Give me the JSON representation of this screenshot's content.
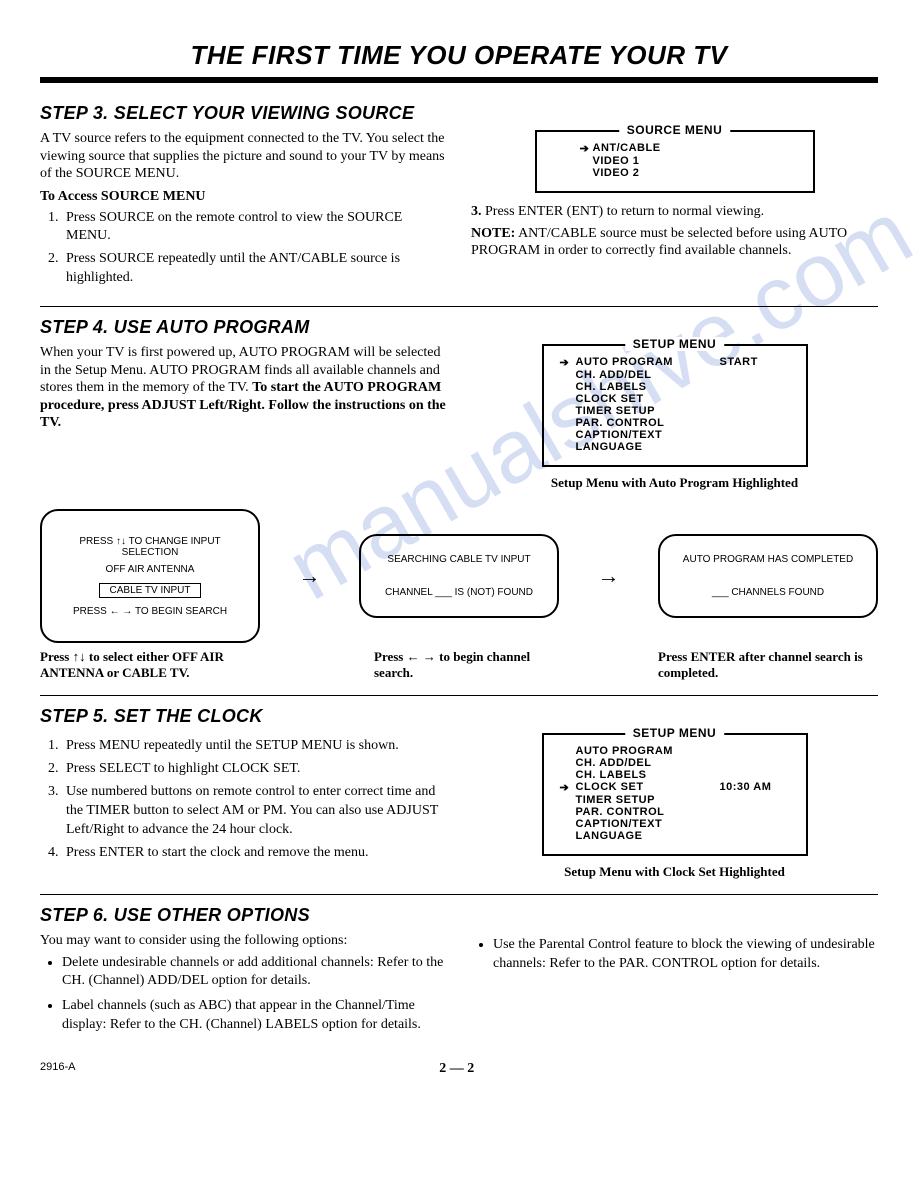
{
  "watermark": "manualshive.com",
  "page_title": "THE FIRST TIME YOU OPERATE YOUR TV",
  "step3": {
    "heading": "STEP 3. SELECT YOUR VIEWING SOURCE",
    "para1": "A TV source refers to the equipment connected to the TV. You select the viewing source that supplies the picture and sound to your TV by means of the SOURCE MENU.",
    "subhead": "To Access SOURCE MENU",
    "items": [
      "Press SOURCE on the remote control to view the SOURCE MENU.",
      "Press SOURCE repeatedly until the ANT/CABLE source is highlighted."
    ],
    "source_menu": {
      "title": "SOURCE MENU",
      "rows": [
        {
          "arrow": "➔",
          "label": "ANT/CABLE"
        },
        {
          "arrow": "",
          "label": "VIDEO 1"
        },
        {
          "arrow": "",
          "label": "VIDEO 2"
        }
      ]
    },
    "item3_lead": "3.",
    "item3": "Press ENTER (ENT) to return to normal viewing.",
    "note_lead": "NOTE:",
    "note": " ANT/CABLE source must be selected before using AUTO PROGRAM in order to correctly find available channels."
  },
  "step4": {
    "heading": "STEP 4. USE AUTO PROGRAM",
    "para": "When your TV is first powered up, AUTO PROGRAM will be selected in the Setup Menu. AUTO PROGRAM finds all available channels and stores them in the memory of the TV. ",
    "para_bold": "To start the AUTO PROGRAM procedure, press ADJUST Left/Right. Follow the instructions on the TV.",
    "setup_menu": {
      "title": "SETUP MENU",
      "rows": [
        {
          "arrow": "➔",
          "label": "AUTO PROGRAM",
          "val": "START"
        },
        {
          "arrow": "",
          "label": "CH. ADD/DEL",
          "val": ""
        },
        {
          "arrow": "",
          "label": "CH. LABELS",
          "val": ""
        },
        {
          "arrow": "",
          "label": "CLOCK SET",
          "val": ""
        },
        {
          "arrow": "",
          "label": "TIMER SETUP",
          "val": ""
        },
        {
          "arrow": "",
          "label": "PAR. CONTROL",
          "val": ""
        },
        {
          "arrow": "",
          "label": "CAPTION/TEXT",
          "val": ""
        },
        {
          "arrow": "",
          "label": "LANGUAGE",
          "val": ""
        }
      ],
      "caption": "Setup Menu with Auto Program Highlighted"
    },
    "flow": {
      "box1": {
        "l1": "PRESS ↑↓ TO CHANGE INPUT SELECTION",
        "l2": "OFF AIR ANTENNA",
        "l3": "CABLE TV INPUT",
        "l4": "PRESS ← → TO BEGIN SEARCH"
      },
      "box2": {
        "l1": "SEARCHING CABLE TV INPUT",
        "l2": "CHANNEL ___ IS (NOT) FOUND"
      },
      "box3": {
        "l1": "AUTO PROGRAM HAS COMPLETED",
        "l2": "___ CHANNELS FOUND"
      },
      "cap1": "Press ↑↓ to select either OFF AIR ANTENNA or CABLE TV.",
      "cap2": "Press ← → to begin channel search.",
      "cap3": "Press ENTER after channel search is completed."
    }
  },
  "step5": {
    "heading": "STEP 5. SET THE CLOCK",
    "items": [
      "Press MENU repeatedly until the SETUP MENU is shown.",
      "Press SELECT to highlight CLOCK SET.",
      "Use numbered buttons on remote control to enter correct time and the TIMER button to select AM or PM. You can also use ADJUST Left/Right to advance the 24 hour clock.",
      "Press ENTER to start the clock and remove the menu."
    ],
    "setup_menu": {
      "title": "SETUP MENU",
      "rows": [
        {
          "arrow": "",
          "label": "AUTO PROGRAM",
          "val": ""
        },
        {
          "arrow": "",
          "label": "CH. ADD/DEL",
          "val": ""
        },
        {
          "arrow": "",
          "label": "CH. LABELS",
          "val": ""
        },
        {
          "arrow": "➔",
          "label": "CLOCK SET",
          "val": "10:30 AM"
        },
        {
          "arrow": "",
          "label": "TIMER SETUP",
          "val": ""
        },
        {
          "arrow": "",
          "label": "PAR. CONTROL",
          "val": ""
        },
        {
          "arrow": "",
          "label": "CAPTION/TEXT",
          "val": ""
        },
        {
          "arrow": "",
          "label": "LANGUAGE",
          "val": ""
        }
      ],
      "caption": "Setup Menu with Clock Set Highlighted"
    }
  },
  "step6": {
    "heading": "STEP 6. USE OTHER OPTIONS",
    "intro": "You may want to consider using the following options:",
    "left_items": [
      "Delete undesirable channels or add additional channels: Refer to the CH. (Channel) ADD/DEL option for details.",
      "Label channels (such as ABC) that appear in the Channel/Time display: Refer to the CH. (Channel) LABELS option for details."
    ],
    "right_items": [
      "Use the Parental Control feature to block the viewing of undesirable channels: Refer to the PAR. CONTROL option for details."
    ]
  },
  "footer": {
    "code": "2916-A",
    "page": "2 — 2"
  }
}
